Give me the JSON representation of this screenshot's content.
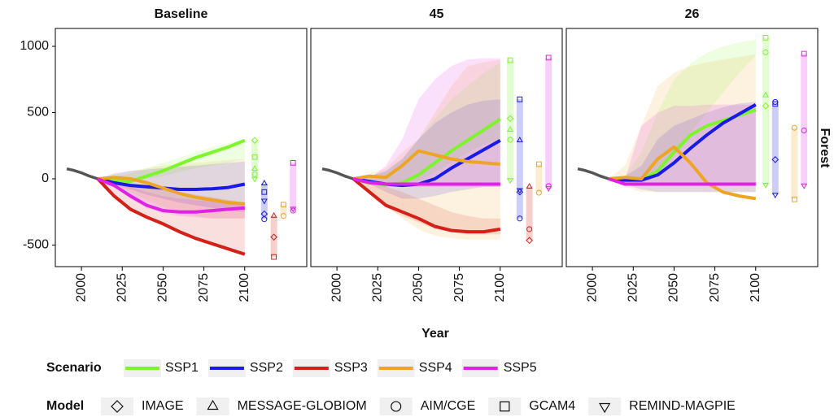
{
  "chart_data": {
    "type": "line",
    "x_label": "Year",
    "y_label": "Forest",
    "x": [
      2010,
      2020,
      2030,
      2040,
      2050,
      2060,
      2070,
      2080,
      2090,
      2100
    ],
    "xlim": [
      1984,
      2138
    ],
    "xticks": [
      2000,
      2025,
      2050,
      2075,
      2100
    ],
    "ylim": [
      -663,
      1135
    ],
    "yticks": [
      -500,
      0,
      500,
      1000
    ],
    "history": {
      "x": [
        1991,
        1995,
        2000,
        2005,
        2010
      ],
      "values": [
        75,
        65,
        45,
        20,
        0
      ],
      "color": "#555555"
    },
    "scenario_title": "Scenario",
    "scenarios": [
      {
        "name": "SSP1",
        "color": "#7cf52a"
      },
      {
        "name": "SSP2",
        "color": "#1a1ae8"
      },
      {
        "name": "SSP3",
        "color": "#d42019"
      },
      {
        "name": "SSP4",
        "color": "#eea524"
      },
      {
        "name": "SSP5",
        "color": "#e022e6"
      }
    ],
    "model_title": "Model",
    "models": [
      {
        "name": "IMAGE",
        "shape": "diamond"
      },
      {
        "name": "MESSAGE-GLOBIOM",
        "shape": "triangle"
      },
      {
        "name": "AIM/CGE",
        "shape": "circle"
      },
      {
        "name": "GCAM4",
        "shape": "square"
      },
      {
        "name": "REMIND-MAGPIE",
        "shape": "triangle-down"
      }
    ],
    "facets": [
      {
        "title": "Baseline",
        "series": [
          {
            "values": [
              0,
              -10,
              -20,
              20,
              60,
              110,
              160,
              200,
              240,
              290
            ],
            "upper": [
              0,
              20,
              40,
              80,
              120,
              160,
              200,
              240,
              270,
              300
            ],
            "lower": [
              0,
              -10,
              -20,
              0,
              20,
              50,
              80,
              100,
              120,
              150
            ],
            "model_values": [
              290,
              75,
              35,
              165,
              0
            ]
          },
          {
            "values": [
              0,
              -30,
              -50,
              -60,
              -70,
              -80,
              -80,
              -75,
              -65,
              -40
            ],
            "upper": [
              0,
              40,
              60,
              70,
              80,
              90,
              100,
              110,
              120,
              130
            ],
            "lower": [
              0,
              -40,
              -80,
              -120,
              -150,
              -180,
              -200,
              -220,
              -240,
              -250
            ],
            "model_values": [
              -265,
              -35,
              -305,
              -100,
              -165
            ]
          },
          {
            "values": [
              0,
              -130,
              -230,
              -290,
              -340,
              -400,
              -450,
              -490,
              -530,
              -570
            ],
            "upper": [
              0,
              -20,
              -40,
              -60,
              -80,
              -100,
              -120,
              -140,
              -160,
              -180
            ],
            "lower": [
              0,
              -140,
              -240,
              -300,
              -350,
              -410,
              -460,
              -500,
              -540,
              -580
            ],
            "model_values": [
              -440,
              -280,
              null,
              -590,
              null
            ]
          },
          {
            "values": [
              0,
              10,
              0,
              -30,
              -70,
              -110,
              -140,
              -160,
              -180,
              -190
            ],
            "upper": [
              0,
              30,
              60,
              80,
              100,
              110,
              120,
              130,
              140,
              150
            ],
            "lower": [
              0,
              -40,
              -100,
              -160,
              -210,
              -250,
              -280,
              -300,
              -300,
              -300
            ],
            "model_values": [
              null,
              null,
              -280,
              -195,
              null
            ]
          },
          {
            "values": [
              0,
              -50,
              -130,
              -200,
              -240,
              -250,
              -250,
              -240,
              -230,
              -220
            ],
            "upper": [
              0,
              -20,
              -60,
              -100,
              -130,
              -150,
              -160,
              -170,
              -180,
              -180
            ],
            "lower": [
              0,
              -60,
              -150,
              -220,
              -260,
              -280,
              -290,
              -300,
              -300,
              -300
            ],
            "model_values": [
              null,
              null,
              -240,
              120,
              -225
            ]
          }
        ]
      },
      {
        "title": "45",
        "series": [
          {
            "values": [
              0,
              -30,
              -45,
              -30,
              30,
              120,
              210,
              290,
              370,
              450
            ],
            "upper": [
              0,
              20,
              50,
              150,
              300,
              450,
              600,
              700,
              800,
              880
            ],
            "lower": [
              0,
              -20,
              -40,
              -60,
              -20,
              50,
              120,
              200,
              260,
              300
            ],
            "model_values": [
              455,
              370,
              295,
              895,
              -10
            ]
          },
          {
            "values": [
              0,
              -20,
              -40,
              -50,
              -40,
              0,
              80,
              150,
              220,
              290
            ],
            "upper": [
              0,
              20,
              60,
              150,
              300,
              420,
              500,
              560,
              590,
              600
            ],
            "lower": [
              0,
              -40,
              -100,
              -150,
              -150,
              -130,
              -100,
              -80,
              -60,
              -60
            ],
            "model_values": [
              -100,
              290,
              -300,
              600,
              -85
            ]
          },
          {
            "values": [
              0,
              -100,
              -200,
              -250,
              -300,
              -360,
              -390,
              -400,
              -400,
              -380
            ],
            "upper": [
              0,
              -20,
              -60,
              -100,
              -150,
              -200,
              -250,
              -280,
              -300,
              -300
            ],
            "lower": [
              0,
              -120,
              -220,
              -280,
              -330,
              -380,
              -400,
              -420,
              -420,
              -420
            ],
            "model_values": [
              -465,
              -60,
              -380,
              null,
              null
            ]
          },
          {
            "values": [
              0,
              20,
              10,
              100,
              210,
              180,
              150,
              130,
              120,
              110
            ],
            "upper": [
              0,
              40,
              80,
              200,
              300,
              500,
              700,
              850,
              880,
              900
            ],
            "lower": [
              0,
              -80,
              -200,
              -300,
              -380,
              -430,
              -450,
              -460,
              -460,
              -460
            ],
            "model_values": [
              null,
              null,
              -105,
              110,
              null
            ]
          },
          {
            "values": [
              0,
              -30,
              -40,
              -40,
              -40,
              -40,
              -40,
              -40,
              -40,
              -40
            ],
            "upper": [
              0,
              0,
              100,
              300,
              600,
              750,
              850,
              900,
              910,
              910
            ],
            "lower": [
              0,
              -40,
              -60,
              -60,
              -60,
              -60,
              -60,
              -60,
              -60,
              -60
            ],
            "model_values": [
              null,
              null,
              -55,
              915,
              -70
            ]
          }
        ]
      },
      {
        "title": "26",
        "series": [
          {
            "values": [
              0,
              -10,
              -10,
              60,
              200,
              330,
              400,
              440,
              480,
              520
            ],
            "upper": [
              0,
              20,
              200,
              500,
              750,
              870,
              950,
              1000,
              1030,
              1050
            ],
            "lower": [
              0,
              -20,
              -40,
              50,
              200,
              350,
              500,
              650,
              800,
              930
            ],
            "model_values": [
              550,
              630,
              955,
              1065,
              -45
            ]
          },
          {
            "values": [
              0,
              -10,
              -10,
              30,
              120,
              230,
              330,
              420,
              490,
              560
            ],
            "upper": [
              0,
              20,
              100,
              300,
              400,
              450,
              500,
              540,
              570,
              580
            ],
            "lower": [
              0,
              -40,
              -80,
              -100,
              -100,
              -100,
              -100,
              -100,
              -100,
              -100
            ],
            "model_values": [
              145,
              null,
              580,
              565,
              -120
            ]
          },
          null,
          {
            "values": [
              0,
              10,
              0,
              150,
              240,
              120,
              -30,
              -100,
              -130,
              -150
            ],
            "upper": [
              0,
              100,
              400,
              700,
              800,
              850,
              880,
              900,
              920,
              940
            ],
            "lower": [
              0,
              -60,
              -100,
              -100,
              -100,
              -100,
              -100,
              -100,
              -100,
              -100
            ],
            "model_values": [
              null,
              null,
              385,
              -155,
              null
            ]
          },
          {
            "values": [
              0,
              -40,
              -40,
              -40,
              -40,
              -40,
              -40,
              -40,
              -40,
              -40
            ],
            "upper": [
              0,
              0,
              400,
              500,
              550,
              550,
              560,
              560,
              560,
              560
            ],
            "lower": [
              0,
              -40,
              -50,
              -50,
              -50,
              -50,
              -50,
              -50,
              -50,
              -50
            ],
            "model_values": [
              null,
              null,
              365,
              945,
              -50
            ]
          }
        ]
      }
    ]
  }
}
